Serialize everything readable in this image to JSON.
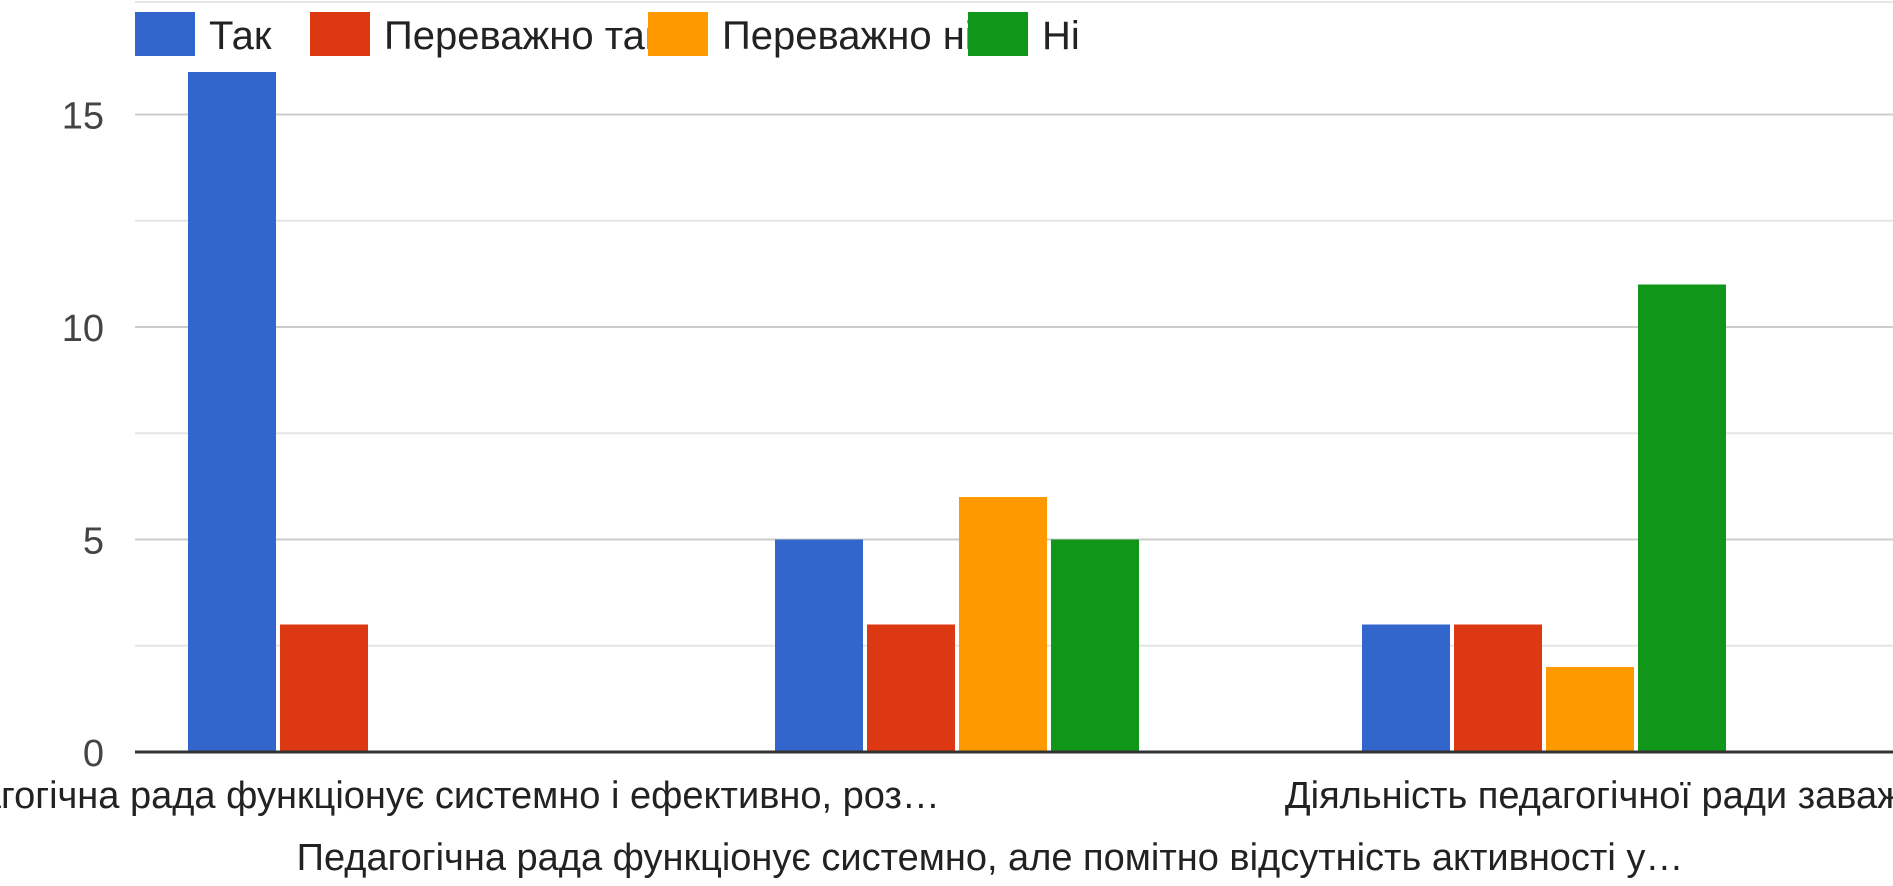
{
  "chart_data": {
    "type": "bar",
    "categories": [
      "Педагогічна рада функціонує системно і ефективно, роз…",
      "Педагогічна рада функціонує системно, але помітно відсутність активності у…",
      "Діяльність педагогічної ради заважає…"
    ],
    "series": [
      {
        "name": "Так",
        "color": "#3366cc",
        "values": [
          16,
          5,
          3
        ]
      },
      {
        "name": "Переважно так",
        "color": "#dc3912",
        "values": [
          3,
          3,
          3
        ]
      },
      {
        "name": "Переважно ні",
        "color": "#ff9900",
        "values": [
          0,
          6,
          2
        ]
      },
      {
        "name": "Ні",
        "color": "#109618",
        "values": [
          0,
          5,
          11
        ]
      }
    ],
    "ylim": [
      0,
      16
    ],
    "yticks": [
      "0",
      "5",
      "10",
      "15"
    ],
    "grid": true,
    "legend": "top-left",
    "xlabel": "",
    "ylabel": "",
    "title": ""
  }
}
